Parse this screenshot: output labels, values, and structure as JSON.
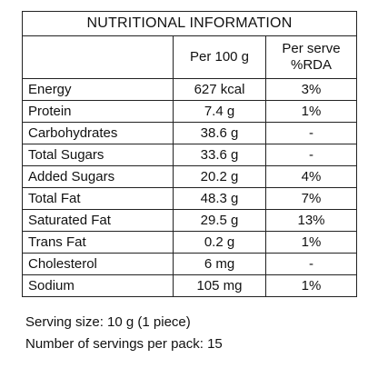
{
  "table": {
    "title": "NUTRITIONAL INFORMATION",
    "header": [
      "Per 100 g",
      [
        "Per serve",
        "%RDA"
      ]
    ],
    "rows": [
      [
        "Energy",
        "627 kcal",
        "3%"
      ],
      [
        "Protein",
        "7.4 g",
        "1%"
      ],
      [
        "Carbohydrates",
        "38.6 g",
        "-"
      ],
      [
        "Total Sugars",
        "33.6 g",
        "-"
      ],
      [
        "Added Sugars",
        "20.2 g",
        "4%"
      ],
      [
        "Total Fat",
        "48.3 g",
        "7%"
      ],
      [
        "Saturated Fat",
        "29.5 g",
        "13%"
      ],
      [
        "Trans Fat",
        "0.2 g",
        "1%"
      ],
      [
        "Cholesterol",
        "6 mg",
        "-"
      ],
      [
        "Sodium",
        "105 mg",
        "1%"
      ]
    ]
  },
  "footer": [
    "Serving size: 10 g (1 piece)",
    "Number of servings per pack: 15"
  ]
}
